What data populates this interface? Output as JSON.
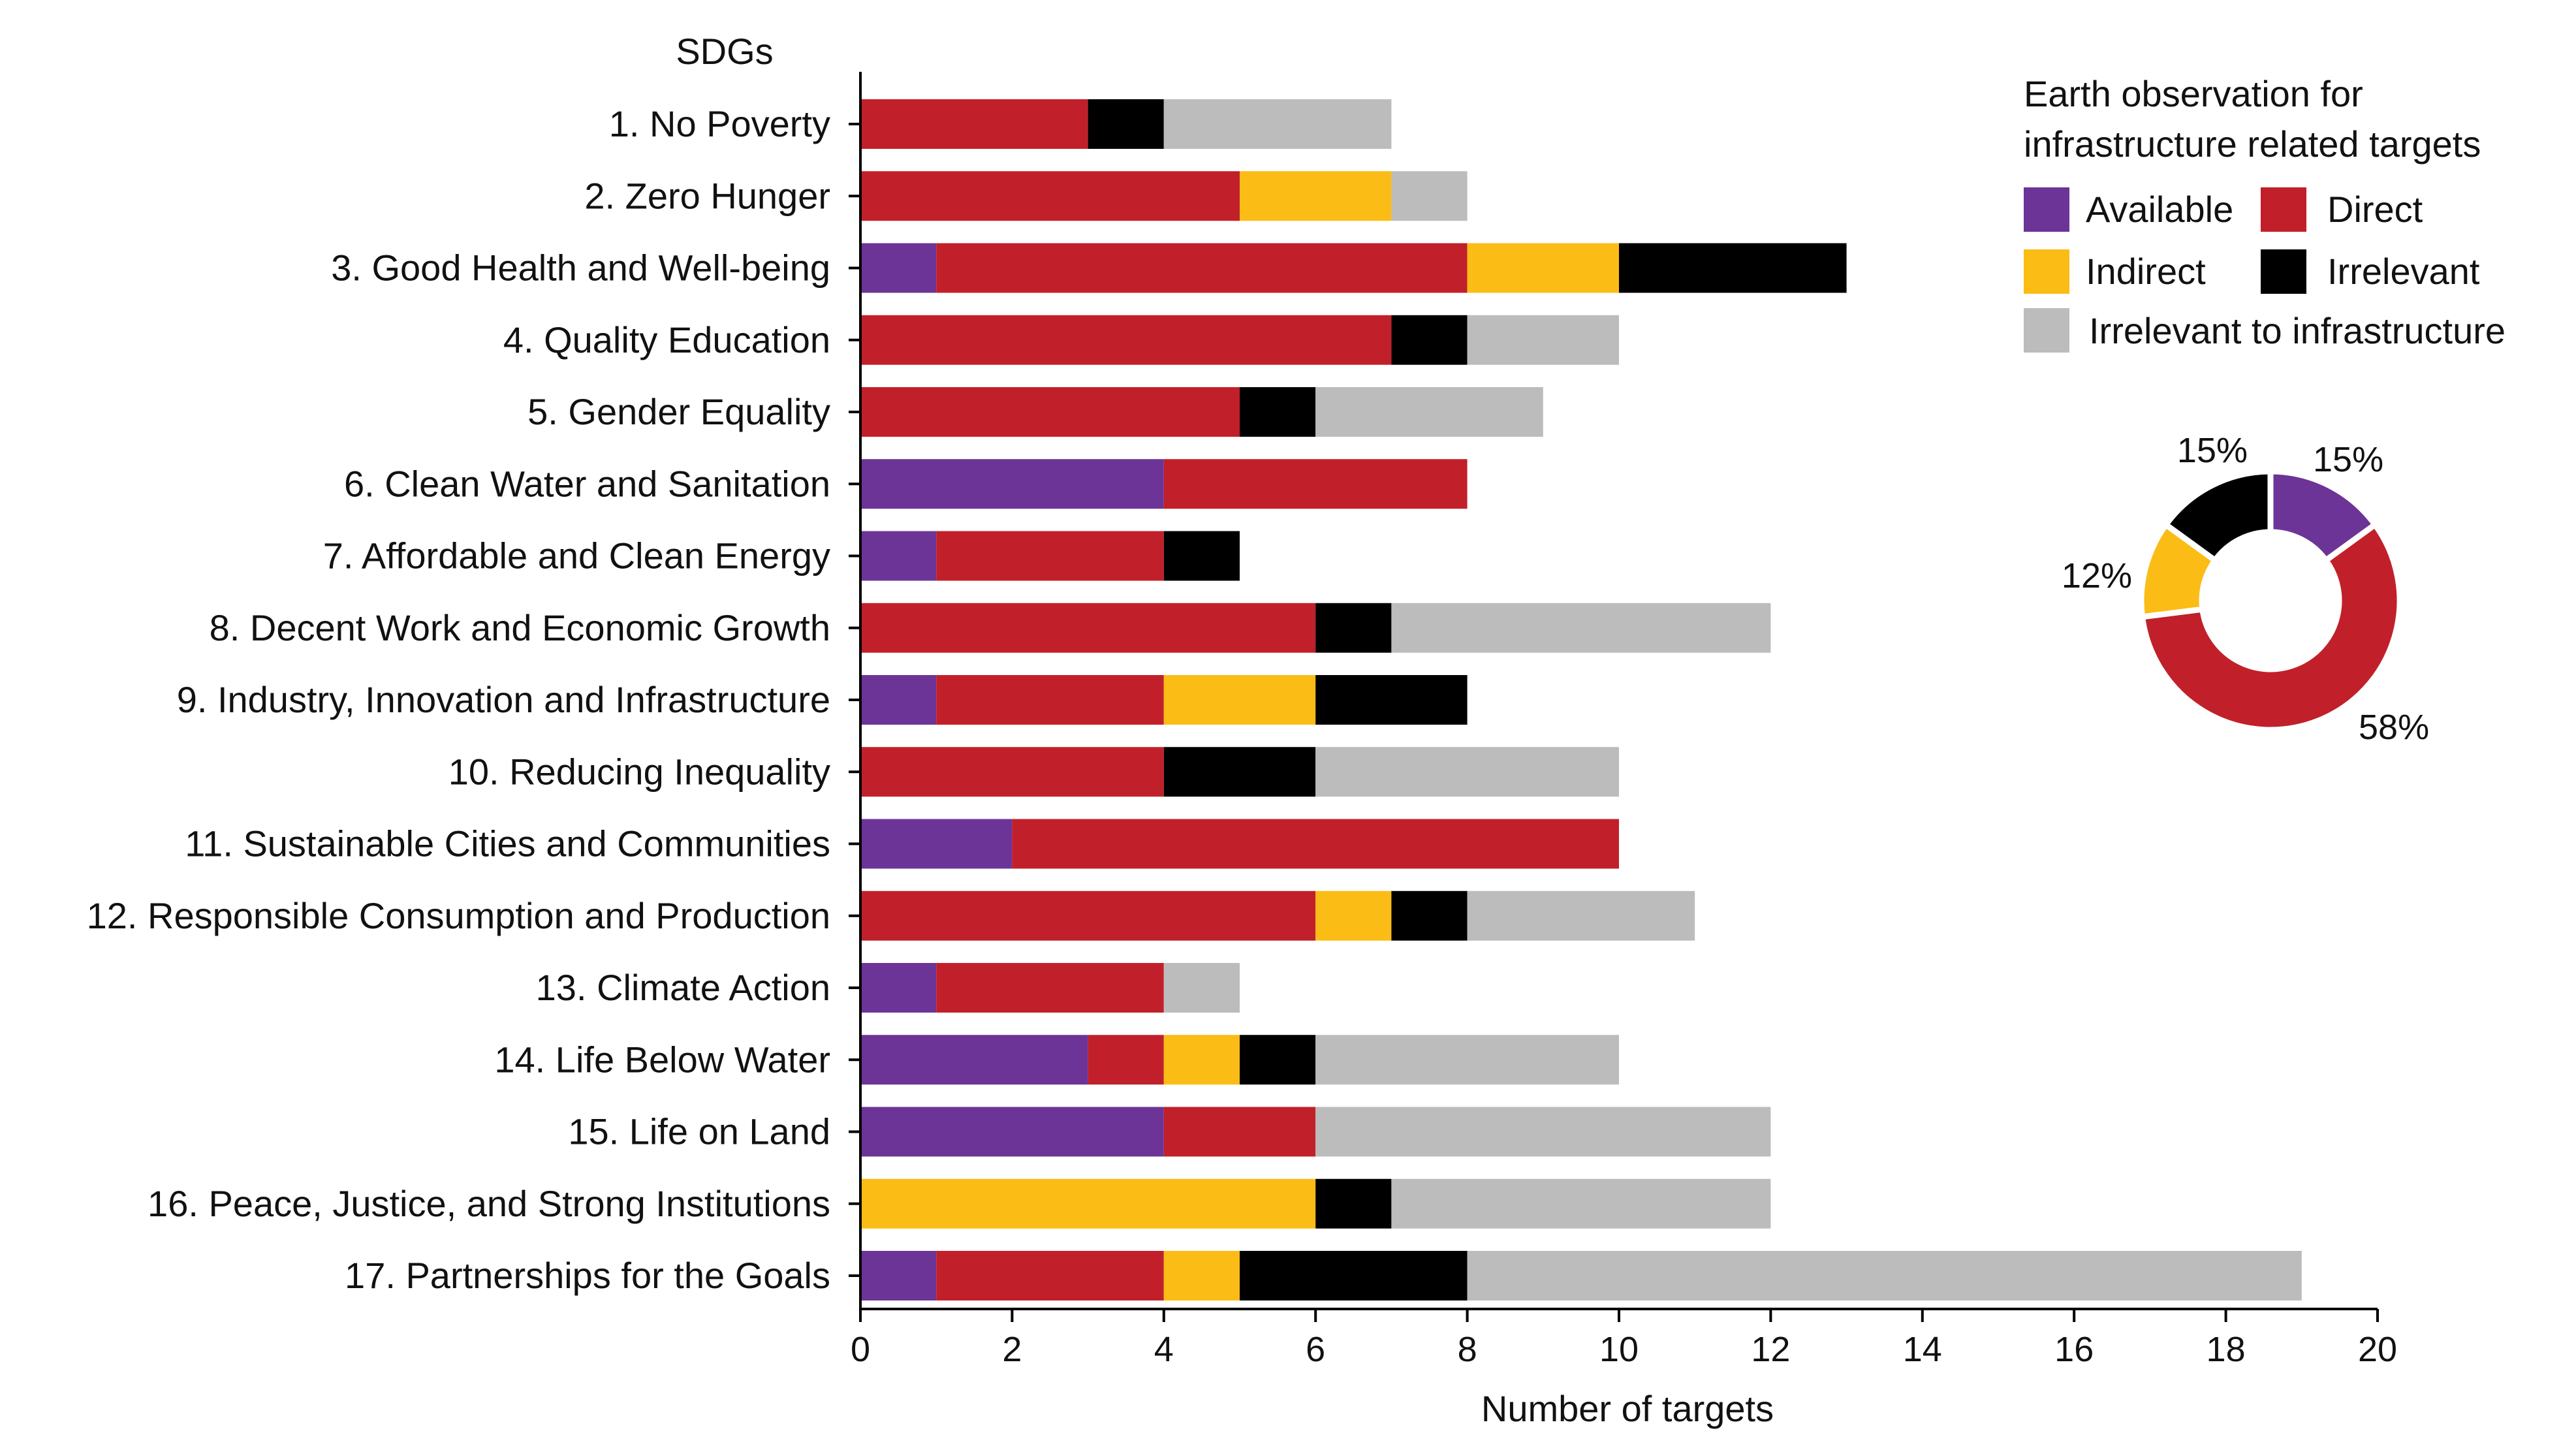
{
  "chart_data": [
    {
      "type": "bar",
      "orientation": "horizontal",
      "stacked": true,
      "title": "",
      "yaxis_title": "SDGs",
      "xlabel": "Number of targets",
      "xlim": [
        0,
        20
      ],
      "xticks": [
        0,
        2,
        4,
        6,
        8,
        10,
        12,
        14,
        16,
        18,
        20
      ],
      "grid": false,
      "categories": [
        "1. No Poverty",
        "2. Zero Hunger",
        "3. Good Health and Well-being",
        "4. Quality Education",
        "5. Gender Equality",
        "6. Clean Water and Sanitation",
        "7. Affordable and Clean Energy",
        "8. Decent Work and Economic Growth",
        "9. Industry, Innovation and Infrastructure",
        "10. Reducing Inequality",
        "11. Sustainable Cities and Communities",
        "12. Responsible Consumption and Production",
        "13. Climate Action",
        "14. Life Below Water",
        "15. Life on Land",
        "16. Peace, Justice, and Strong Institutions",
        "17. Partnerships for the Goals"
      ],
      "series": [
        {
          "name": "Available",
          "color": "#6c3497",
          "values": [
            0,
            0,
            1,
            0,
            0,
            4,
            1,
            0,
            1,
            0,
            2,
            0,
            1,
            3,
            4,
            0,
            1
          ]
        },
        {
          "name": "Direct",
          "color": "#c1202a",
          "values": [
            3,
            5,
            7,
            7,
            5,
            4,
            3,
            6,
            3,
            4,
            8,
            6,
            3,
            1,
            2,
            0,
            3
          ]
        },
        {
          "name": "Indirect",
          "color": "#fbbc15",
          "values": [
            0,
            2,
            2,
            0,
            0,
            0,
            0,
            0,
            2,
            0,
            0,
            1,
            0,
            1,
            0,
            6,
            1
          ]
        },
        {
          "name": "Irrelevant",
          "color": "#000000",
          "values": [
            1,
            0,
            3,
            1,
            1,
            0,
            1,
            1,
            2,
            2,
            0,
            1,
            0,
            1,
            0,
            1,
            3
          ]
        },
        {
          "name": "Irrelevant to infrastructure",
          "color": "#bdbcbd",
          "values": [
            3,
            1,
            0,
            2,
            3,
            0,
            0,
            5,
            0,
            4,
            0,
            3,
            1,
            4,
            6,
            5,
            11
          ]
        }
      ]
    },
    {
      "type": "pie",
      "donut": true,
      "legend_title": "Earth observation for infrastructure related targets",
      "legend_title_lines": [
        "Earth observation for",
        "infrastructure related targets"
      ],
      "legend_position": "top-right",
      "slices": [
        {
          "name": "Available",
          "value": 15,
          "label": "15%",
          "color": "#6c3497"
        },
        {
          "name": "Direct",
          "value": 58,
          "label": "58%",
          "color": "#c1202a"
        },
        {
          "name": "Indirect",
          "value": 12,
          "label": "12%",
          "color": "#fbbc15"
        },
        {
          "name": "Irrelevant",
          "value": 15,
          "label": "15%",
          "color": "#000000"
        }
      ],
      "legend_entries": [
        {
          "name": "Available",
          "color": "#6c3497"
        },
        {
          "name": "Direct",
          "color": "#c1202a"
        },
        {
          "name": "Indirect",
          "color": "#fbbc15"
        },
        {
          "name": "Irrelevant",
          "color": "#000000"
        },
        {
          "name": "Irrelevant to infrastructure",
          "color": "#bdbcbd"
        }
      ]
    }
  ]
}
